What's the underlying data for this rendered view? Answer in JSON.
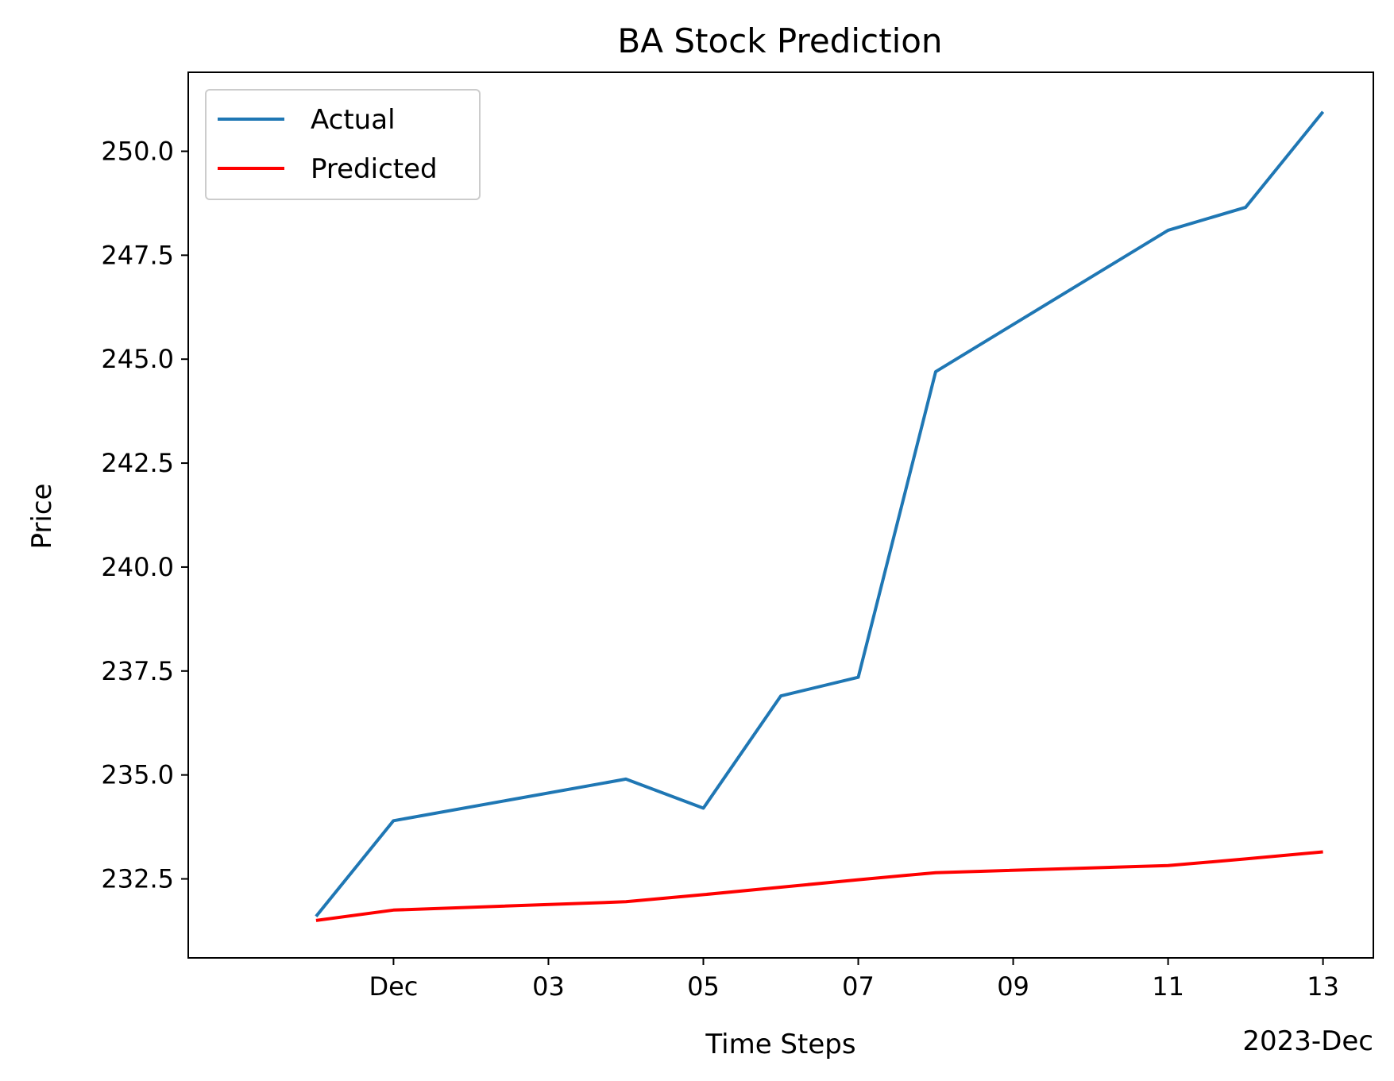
{
  "chart_data": {
    "type": "line",
    "title": "BA Stock Prediction",
    "xlabel": "Time Steps",
    "ylabel": "Price",
    "x_offset_label": "2023-Dec",
    "x": [
      "2023-11-30",
      "2023-12-01",
      "2023-12-04",
      "2023-12-05",
      "2023-12-06",
      "2023-12-07",
      "2023-12-08",
      "2023-12-11",
      "2023-12-12",
      "2023-12-13"
    ],
    "series": [
      {
        "name": "Actual",
        "color": "#1f77b4",
        "values": [
          231.6,
          233.9,
          234.9,
          234.2,
          236.9,
          237.35,
          244.7,
          248.1,
          248.65,
          250.95
        ]
      },
      {
        "name": "Predicted",
        "color": "#ff0000",
        "values": [
          231.5,
          231.75,
          231.95,
          232.12,
          232.3,
          232.48,
          232.65,
          232.82,
          232.98,
          233.15
        ]
      }
    ],
    "xticks": [
      {
        "date": "2023-12-01",
        "label": "Dec"
      },
      {
        "date": "2023-12-03",
        "label": "03"
      },
      {
        "date": "2023-12-05",
        "label": "05"
      },
      {
        "date": "2023-12-07",
        "label": "07"
      },
      {
        "date": "2023-12-09",
        "label": "09"
      },
      {
        "date": "2023-12-11",
        "label": "11"
      },
      {
        "date": "2023-12-13",
        "label": "13"
      }
    ],
    "yticks": [
      232.5,
      235.0,
      237.5,
      240.0,
      242.5,
      245.0,
      247.5,
      250.0
    ],
    "xlim": [
      "2023-11-28T08:24",
      "2023-12-13T15:36"
    ],
    "ylim": [
      230.6,
      251.9
    ],
    "grid": false,
    "legend_position": "top-left"
  }
}
